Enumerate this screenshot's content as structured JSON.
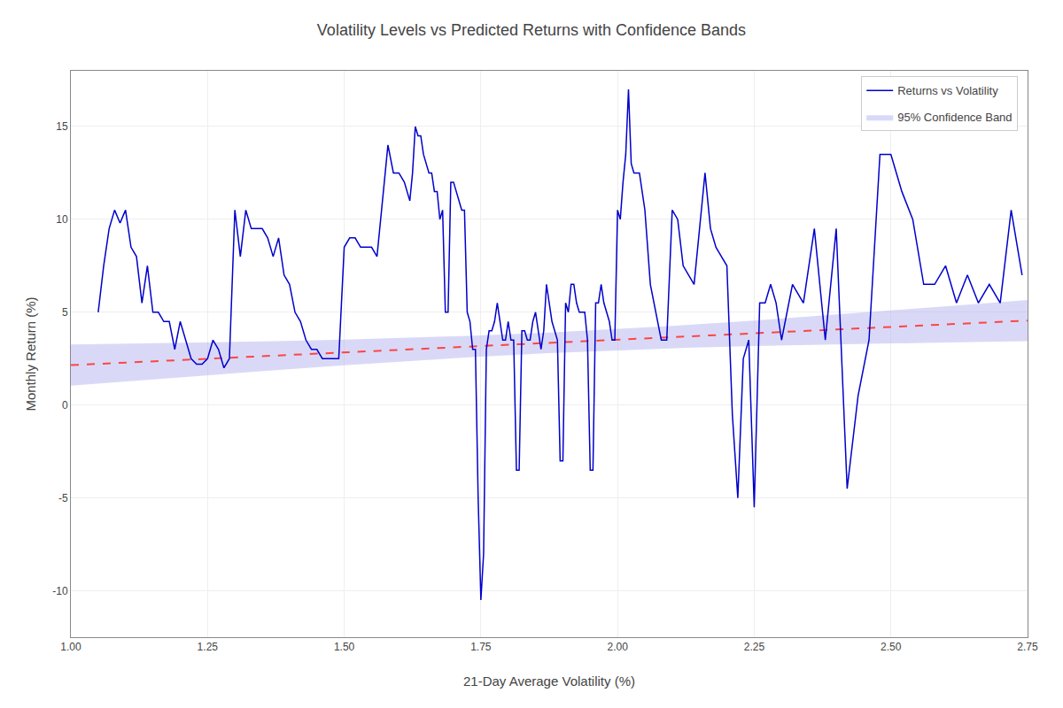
{
  "chart_data": {
    "type": "line",
    "title": "Volatility Levels vs Predicted Returns with Confidence Bands",
    "xlabel": "21-Day Average Volatility (%)",
    "ylabel": "Monthly Return (%)",
    "xlim": [
      1.0,
      2.75
    ],
    "ylim": [
      -12.5,
      18
    ],
    "xticks": [
      {
        "value": 1.0,
        "label": "1.00"
      },
      1.25,
      {
        "value": 1.5,
        "label": "1.50"
      },
      1.75,
      {
        "value": 2.0,
        "label": "2.00"
      },
      2.25,
      {
        "value": 2.5,
        "label": "2.50"
      },
      2.75
    ],
    "yticks": [
      -10,
      -5,
      0,
      5,
      10,
      15
    ],
    "grid": true,
    "legend": "upper right",
    "series": [
      {
        "name": "95% Confidence Band",
        "type": "band",
        "color": "#AAAAEE",
        "x": [
          1.0,
          1.125,
          1.25,
          1.375,
          1.5,
          1.625,
          1.75,
          1.875,
          2.0,
          2.125,
          2.25,
          2.375,
          2.5,
          2.625,
          2.75
        ],
        "lower": [
          1.041,
          1.33,
          1.612,
          1.886,
          2.148,
          2.392,
          2.612,
          2.8,
          2.955,
          3.078,
          3.177,
          3.258,
          3.327,
          3.387,
          3.441
        ],
        "upper": [
          3.259,
          3.313,
          3.373,
          3.442,
          3.523,
          3.622,
          3.745,
          3.9,
          4.088,
          4.308,
          4.552,
          4.814,
          5.088,
          5.37,
          5.659
        ]
      },
      {
        "type": "line",
        "color": "#FF4444",
        "line_style": "dashed",
        "x": [
          1.0,
          2.75
        ],
        "values": [
          2.15,
          4.55
        ]
      },
      {
        "name": "Returns vs Volatility",
        "type": "line",
        "color": "#0000CC",
        "x": [
          1.05,
          1.06,
          1.07,
          1.08,
          1.09,
          1.1,
          1.11,
          1.12,
          1.13,
          1.14,
          1.15,
          1.16,
          1.17,
          1.18,
          1.19,
          1.2,
          1.21,
          1.22,
          1.23,
          1.24,
          1.25,
          1.26,
          1.27,
          1.28,
          1.29,
          1.3,
          1.31,
          1.32,
          1.33,
          1.34,
          1.35,
          1.36,
          1.37,
          1.38,
          1.39,
          1.4,
          1.41,
          1.42,
          1.43,
          1.44,
          1.45,
          1.46,
          1.47,
          1.48,
          1.49,
          1.5,
          1.51,
          1.52,
          1.53,
          1.54,
          1.55,
          1.56,
          1.57,
          1.58,
          1.59,
          1.6,
          1.61,
          1.62,
          1.625,
          1.63,
          1.635,
          1.64,
          1.645,
          1.65,
          1.655,
          1.66,
          1.665,
          1.67,
          1.675,
          1.68,
          1.685,
          1.69,
          1.695,
          1.7,
          1.705,
          1.71,
          1.715,
          1.72,
          1.725,
          1.73,
          1.735,
          1.74,
          1.745,
          1.75,
          1.755,
          1.76,
          1.765,
          1.77,
          1.775,
          1.78,
          1.785,
          1.79,
          1.795,
          1.8,
          1.805,
          1.81,
          1.815,
          1.82,
          1.825,
          1.83,
          1.835,
          1.84,
          1.845,
          1.85,
          1.855,
          1.86,
          1.865,
          1.87,
          1.875,
          1.88,
          1.885,
          1.89,
          1.895,
          1.9,
          1.905,
          1.91,
          1.915,
          1.92,
          1.925,
          1.93,
          1.935,
          1.94,
          1.945,
          1.95,
          1.955,
          1.96,
          1.965,
          1.97,
          1.975,
          1.98,
          1.985,
          1.99,
          1.995,
          2.0,
          2.005,
          2.01,
          2.015,
          2.02,
          2.025,
          2.03,
          2.04,
          2.05,
          2.06,
          2.07,
          2.08,
          2.09,
          2.1,
          2.11,
          2.12,
          2.13,
          2.14,
          2.15,
          2.16,
          2.17,
          2.18,
          2.19,
          2.2,
          2.21,
          2.22,
          2.23,
          2.24,
          2.25,
          2.26,
          2.27,
          2.28,
          2.29,
          2.3,
          2.32,
          2.34,
          2.36,
          2.38,
          2.4,
          2.42,
          2.44,
          2.46,
          2.48,
          2.5,
          2.52,
          2.54,
          2.56,
          2.58,
          2.6,
          2.62,
          2.64,
          2.66,
          2.68,
          2.7,
          2.72,
          2.74
        ],
        "values": [
          5.0,
          7.5,
          9.5,
          10.5,
          9.8,
          10.5,
          8.5,
          8.0,
          5.5,
          7.5,
          5.0,
          5.0,
          4.5,
          4.5,
          3.0,
          4.5,
          3.5,
          2.5,
          2.2,
          2.2,
          2.5,
          3.5,
          3.0,
          2.0,
          2.5,
          10.5,
          8.0,
          10.5,
          9.5,
          9.5,
          9.5,
          9.0,
          8.0,
          9.0,
          7.0,
          6.5,
          5.0,
          4.5,
          3.5,
          3.0,
          3.0,
          2.5,
          2.5,
          2.5,
          2.5,
          8.5,
          9.0,
          9.0,
          8.5,
          8.5,
          8.5,
          8.0,
          11.0,
          14.0,
          12.5,
          12.5,
          12.0,
          11.0,
          12.5,
          15.0,
          14.5,
          14.5,
          13.5,
          13.0,
          12.5,
          12.5,
          11.5,
          11.5,
          10.0,
          10.5,
          5.0,
          5.0,
          12.0,
          12.0,
          11.5,
          11.0,
          10.5,
          10.5,
          5.0,
          4.5,
          3.0,
          3.0,
          -5.0,
          -10.5,
          -8.0,
          3.0,
          4.0,
          4.0,
          4.5,
          5.5,
          4.5,
          3.5,
          3.5,
          4.5,
          3.5,
          3.5,
          -3.5,
          -3.5,
          4.0,
          4.0,
          3.5,
          3.5,
          4.5,
          5.0,
          4.0,
          3.0,
          4.0,
          6.5,
          5.5,
          4.5,
          4.0,
          3.5,
          -3.0,
          -3.0,
          5.5,
          5.0,
          6.5,
          6.5,
          5.5,
          5.0,
          5.0,
          5.0,
          3.5,
          -3.5,
          -3.5,
          5.5,
          5.5,
          6.5,
          5.5,
          5.0,
          4.5,
          3.5,
          3.5,
          10.5,
          10.0,
          12.0,
          13.5,
          17.0,
          13.0,
          12.5,
          12.5,
          10.5,
          6.5,
          5.0,
          3.5,
          3.5,
          10.5,
          10.0,
          7.5,
          7.0,
          6.5,
          9.5,
          12.5,
          9.5,
          8.5,
          8.0,
          7.5,
          -0.5,
          -5.0,
          2.5,
          3.5,
          -5.5,
          5.5,
          5.5,
          6.5,
          5.5,
          3.5,
          6.5,
          5.5,
          9.5,
          3.5,
          9.5,
          -4.5,
          0.5,
          3.5,
          13.5,
          13.5,
          11.5,
          10.0,
          6.5,
          6.5,
          7.5,
          5.5,
          7.0,
          5.5,
          6.5,
          5.5,
          10.5,
          7.0
        ]
      }
    ]
  }
}
